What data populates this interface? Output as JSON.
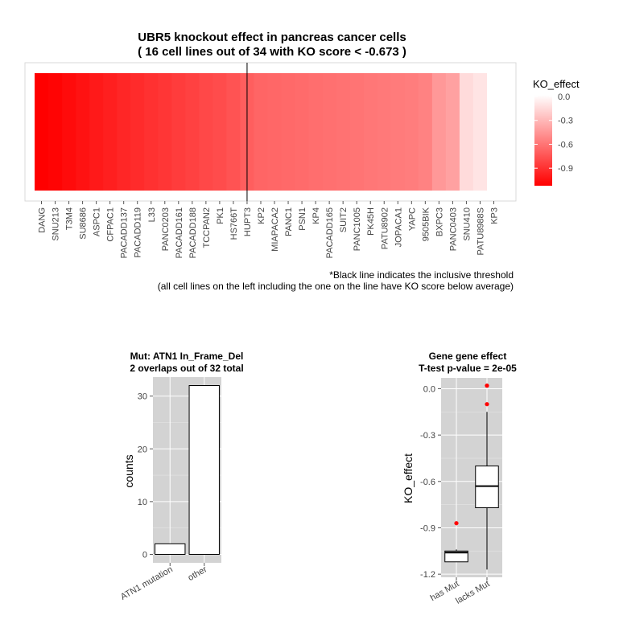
{
  "chart_data": [
    {
      "type": "heatmap",
      "title": "UBR5 knockout effect in pancreas cancer cells",
      "subtitle": "( 16 cell lines out of  34 with KO score < -0.673 )",
      "categories": [
        "DANG",
        "SNU213",
        "T3M4",
        "SU8686",
        "ASPC1",
        "CFPAC1",
        "PACADD137",
        "PACADD119",
        "L33",
        "PANC0203",
        "PACADD161",
        "PACADD188",
        "TCCPAN2",
        "PK1",
        "HS766T",
        "HUPT3",
        "KP2",
        "MIAPACA2",
        "PANC1",
        "PSN1",
        "KP4",
        "PACADD165",
        "SUIT2",
        "PANC1005",
        "PK45H",
        "PATU8902",
        "JOPACA1",
        "YAPC",
        "9505BIK",
        "BXPC3",
        "PANC0403",
        "SNU410",
        "PATU8988S",
        "KP3"
      ],
      "values": [
        -1.12,
        -1.1,
        -1.07,
        -1.04,
        -1.01,
        -0.98,
        -0.95,
        -0.93,
        -0.9,
        -0.88,
        -0.85,
        -0.83,
        -0.8,
        -0.78,
        -0.75,
        -0.7,
        -0.67,
        -0.66,
        -0.65,
        -0.64,
        -0.63,
        -0.62,
        -0.61,
        -0.6,
        -0.59,
        -0.58,
        -0.57,
        -0.56,
        -0.54,
        -0.44,
        -0.4,
        -0.14,
        -0.1,
        0.02
      ],
      "threshold_after": "HUPT3",
      "legend": {
        "title": "KO_effect",
        "ticks": [
          0.0,
          -0.3,
          -0.6,
          -0.9
        ],
        "tick_labels": [
          "0.0",
          "-0.3",
          "-0.6",
          "-0.9"
        ],
        "range": [
          -1.12,
          0.02
        ],
        "low_color": "#ff0000",
        "high_color": "#ffffff",
        "position": "right"
      },
      "notes": [
        "*Black line indicates the inclusive threshold",
        "(all cell lines on the left including the one on the line have KO score below average)"
      ]
    },
    {
      "type": "bar",
      "title": "Mut: ATN1 In_Frame_Del",
      "subtitle": "2 overlaps out of 32 total",
      "categories": [
        "ATN1 mutation",
        "other"
      ],
      "values": [
        2,
        32
      ],
      "xlabel": "",
      "ylabel": "counts",
      "ylim": [
        -1.6,
        33.6
      ],
      "yticks": [
        0,
        10,
        20,
        30
      ],
      "ytick_labels": [
        "0",
        "10",
        "20",
        "30"
      ],
      "grid": true
    },
    {
      "type": "box",
      "title": "Gene gene effect",
      "subtitle": "T-test p-value = 2e-05",
      "categories": [
        "has Mut",
        "lacks Mut"
      ],
      "xlabel": "",
      "ylabel": "KO_effect",
      "ylim": [
        -1.22,
        0.07
      ],
      "yticks": [
        0.0,
        -0.3,
        -0.6,
        -0.9,
        -1.2
      ],
      "ytick_labels": [
        "0.0",
        "-0.3",
        "-0.6",
        "-0.9",
        "-1.2"
      ],
      "grid": true,
      "boxes": [
        {
          "name": "has Mut",
          "min": -1.12,
          "q1": -1.12,
          "median": -1.06,
          "q3": -1.05,
          "max": -1.04,
          "outliers": [
            -0.87
          ]
        },
        {
          "name": "lacks Mut",
          "min": -1.17,
          "q1": -0.77,
          "median": -0.63,
          "q3": -0.5,
          "max": -0.15,
          "outliers": [
            -0.1,
            0.02
          ]
        }
      ],
      "outlier_color": "#ff0000"
    }
  ]
}
